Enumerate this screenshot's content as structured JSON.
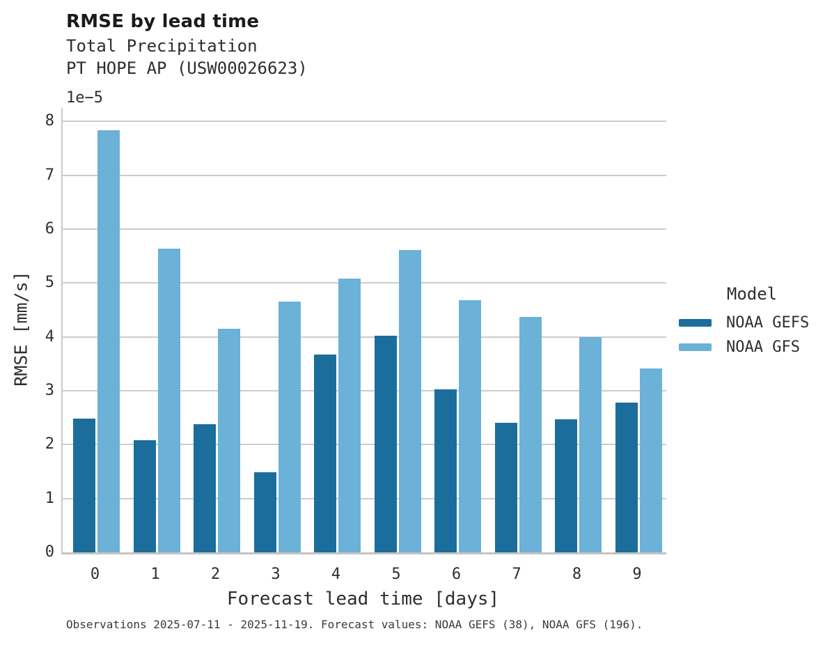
{
  "header": {
    "title": "RMSE by lead time",
    "subtitle_variable": "Total Precipitation",
    "subtitle_station": "PT HOPE AP (USW00026623)"
  },
  "axes": {
    "y_offset_label": "1e−5",
    "ylabel": "RMSE [mm/s]",
    "xlabel": "Forecast lead time [days]",
    "ytick_labels": [
      "0",
      "1",
      "2",
      "3",
      "4",
      "5",
      "6",
      "7",
      "8"
    ],
    "xtick_labels": [
      "0",
      "1",
      "2",
      "3",
      "4",
      "5",
      "6",
      "7",
      "8",
      "9"
    ]
  },
  "legend": {
    "title": "Model",
    "items": [
      {
        "label": "NOAA GEFS",
        "color": "#1b6e9c"
      },
      {
        "label": "NOAA GFS",
        "color": "#6cb1d8"
      }
    ]
  },
  "footnote": "Observations 2025-07-11 - 2025-11-19. Forecast values: NOAA GEFS (38), NOAA GFS (196).",
  "colors": {
    "gefs_dark_blue": "#1b6e9c",
    "gfs_light_blue": "#6cb1d8",
    "gridline_gray": "#cccccc",
    "axis_gray": "#c4c4c4"
  },
  "chart_data": {
    "type": "bar",
    "title": "RMSE by lead time",
    "subtitle": [
      "Total Precipitation",
      "PT HOPE AP (USW00026623)"
    ],
    "categories": [
      0,
      1,
      2,
      3,
      4,
      5,
      6,
      7,
      8,
      9
    ],
    "series": [
      {
        "name": "NOAA GEFS",
        "color": "#1b6e9c",
        "values": [
          2.48,
          2.08,
          2.38,
          1.49,
          3.67,
          4.02,
          3.03,
          2.41,
          2.47,
          2.78
        ]
      },
      {
        "name": "NOAA GFS",
        "color": "#6cb1d8",
        "values": [
          7.83,
          5.64,
          4.15,
          4.65,
          5.08,
          5.61,
          4.68,
          4.37,
          4.0,
          3.42
        ]
      }
    ],
    "value_scale_factor": "1e-5",
    "xlabel": "Forecast lead time [days]",
    "ylabel": "RMSE [mm/s]",
    "ylim": [
      0,
      8.25
    ],
    "yticks": [
      0,
      1,
      2,
      3,
      4,
      5,
      6,
      7,
      8
    ],
    "grid": true,
    "legend_title": "Model",
    "legend_position": "right"
  }
}
